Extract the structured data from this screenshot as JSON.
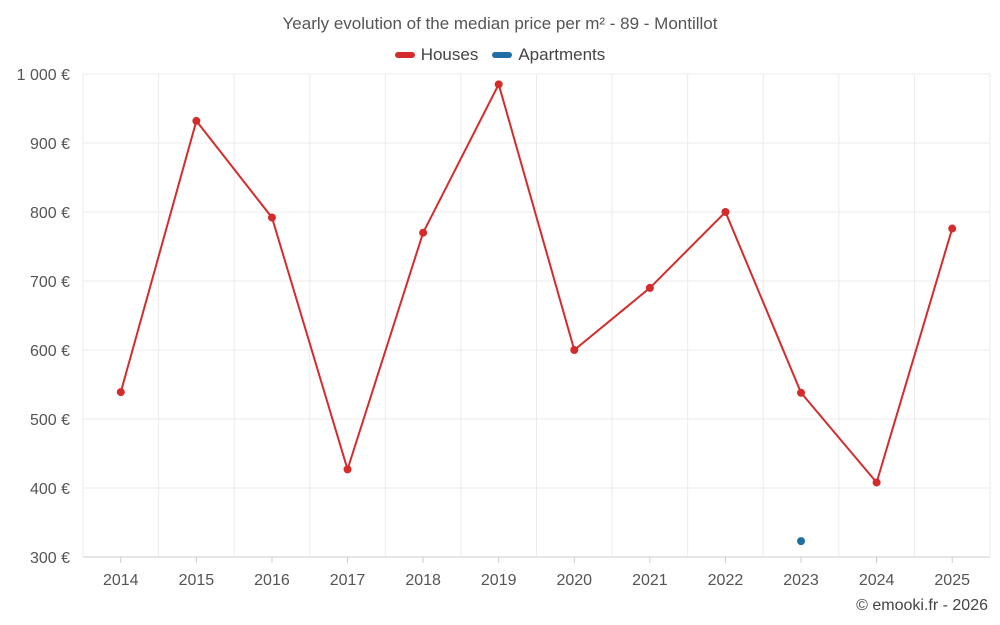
{
  "title": "Yearly evolution of the median price per m² - 89 - Montillot",
  "legend": [
    {
      "name": "Houses",
      "color": "#d62b2b"
    },
    {
      "name": "Apartments",
      "color": "#1f6fa4"
    }
  ],
  "watermark": "© emooki.fr - 2026",
  "chart_data": {
    "type": "line",
    "title": "Yearly evolution of the median price per m² - 89 - Montillot",
    "categories": [
      "2014",
      "2015",
      "2016",
      "2017",
      "2018",
      "2019",
      "2020",
      "2021",
      "2022",
      "2023",
      "2024",
      "2025"
    ],
    "yticks": [
      300,
      400,
      500,
      600,
      700,
      800,
      900,
      1000
    ],
    "ytick_labels": [
      "300 €",
      "400 €",
      "500 €",
      "600 €",
      "700 €",
      "800 €",
      "900 €",
      "1 000 €"
    ],
    "ylim": [
      300,
      1000
    ],
    "grid": true,
    "legend_position": "top-center",
    "series": [
      {
        "name": "Houses",
        "color": "#d62b2b",
        "values": [
          539,
          932,
          792,
          427,
          770,
          985,
          600,
          690,
          800,
          538,
          408,
          776
        ]
      },
      {
        "name": "Apartments",
        "color": "#1f6fa4",
        "values": [
          null,
          null,
          null,
          null,
          null,
          null,
          null,
          null,
          null,
          323,
          null,
          null
        ]
      }
    ]
  }
}
